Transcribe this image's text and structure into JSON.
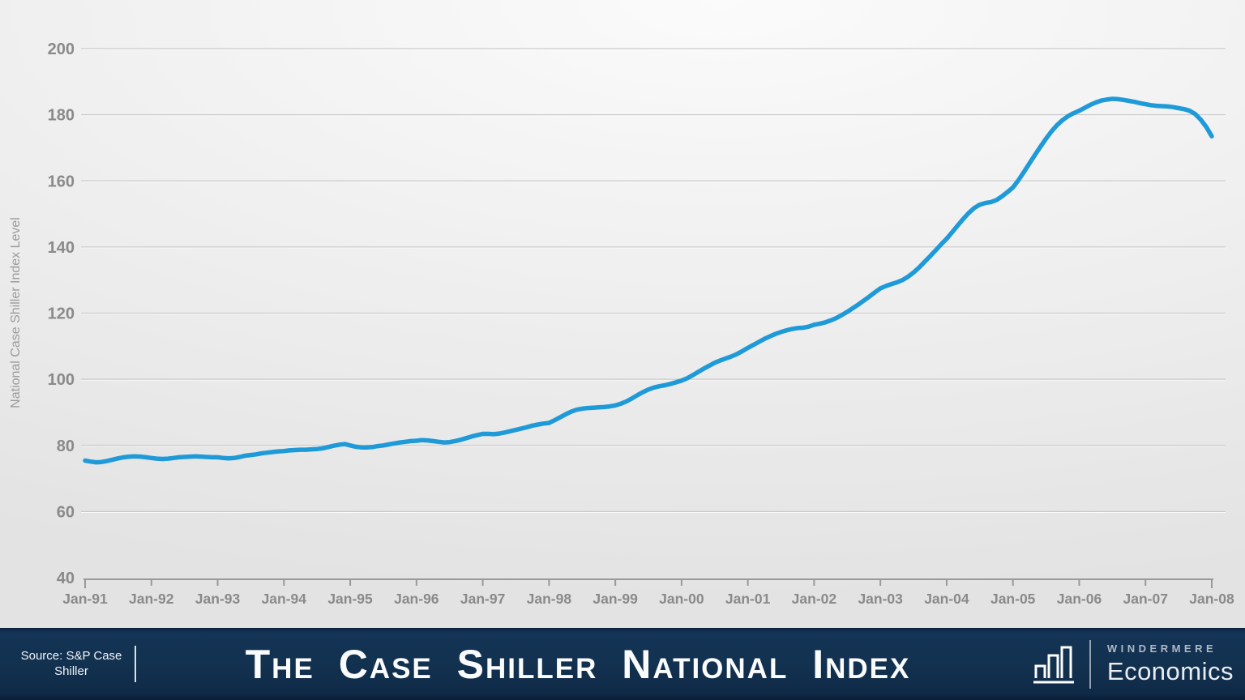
{
  "chart_data": {
    "type": "line",
    "title": "The Case Shiller National Index",
    "xlabel": "",
    "ylabel": "National Case Shiller Index Level",
    "ylim": [
      40,
      200
    ],
    "y_ticks": [
      40,
      60,
      80,
      100,
      120,
      140,
      160,
      180,
      200
    ],
    "x_tick_labels": [
      "Jan-91",
      "Jan-92",
      "Jan-93",
      "Jan-94",
      "Jan-95",
      "Jan-96",
      "Jan-97",
      "Jan-98",
      "Jan-99",
      "Jan-00",
      "Jan-01",
      "Jan-02",
      "Jan-03",
      "Jan-04",
      "Jan-05",
      "Jan-06",
      "Jan-07",
      "Jan-08"
    ],
    "frequency": "monthly",
    "grid": true,
    "legend": false,
    "line_color": "#1f9ad9",
    "series": [
      {
        "name": "National Case Shiller Index Level",
        "values": [
          75.4,
          75.1,
          74.9,
          75.0,
          75.3,
          75.7,
          76.1,
          76.4,
          76.6,
          76.7,
          76.6,
          76.4,
          76.2,
          76.0,
          75.9,
          76.0,
          76.2,
          76.4,
          76.5,
          76.6,
          76.7,
          76.6,
          76.5,
          76.4,
          76.4,
          76.2,
          76.1,
          76.2,
          76.5,
          76.9,
          77.1,
          77.3,
          77.6,
          77.8,
          78.0,
          78.2,
          78.3,
          78.5,
          78.6,
          78.7,
          78.7,
          78.8,
          78.9,
          79.1,
          79.5,
          79.9,
          80.2,
          80.4,
          80.0,
          79.6,
          79.4,
          79.4,
          79.5,
          79.8,
          80.0,
          80.3,
          80.6,
          80.9,
          81.1,
          81.3,
          81.4,
          81.6,
          81.5,
          81.3,
          81.1,
          80.9,
          81.0,
          81.3,
          81.7,
          82.2,
          82.7,
          83.1,
          83.5,
          83.5,
          83.4,
          83.6,
          83.9,
          84.3,
          84.7,
          85.1,
          85.5,
          86.0,
          86.3,
          86.6,
          86.8,
          87.6,
          88.5,
          89.4,
          90.2,
          90.8,
          91.1,
          91.3,
          91.4,
          91.5,
          91.6,
          91.8,
          92.1,
          92.6,
          93.3,
          94.2,
          95.2,
          96.1,
          96.9,
          97.5,
          97.9,
          98.2,
          98.6,
          99.1,
          99.6,
          100.3,
          101.2,
          102.2,
          103.2,
          104.1,
          105.0,
          105.7,
          106.3,
          106.9,
          107.6,
          108.5,
          109.5,
          110.4,
          111.3,
          112.2,
          113.0,
          113.7,
          114.3,
          114.8,
          115.2,
          115.5,
          115.6,
          115.9,
          116.5,
          116.8,
          117.2,
          117.8,
          118.5,
          119.4,
          120.4,
          121.5,
          122.6,
          123.8,
          125.0,
          126.3,
          127.5,
          128.2,
          128.8,
          129.3,
          130.0,
          131.0,
          132.3,
          133.8,
          135.5,
          137.2,
          139.0,
          140.8,
          142.5,
          144.5,
          146.5,
          148.5,
          150.3,
          151.8,
          152.8,
          153.3,
          153.6,
          154.2,
          155.3,
          156.6,
          158.0,
          160.2,
          162.7,
          165.3,
          167.9,
          170.4,
          172.8,
          175.0,
          176.9,
          178.4,
          179.6,
          180.5,
          181.2,
          182.1,
          183.0,
          183.7,
          184.3,
          184.6,
          184.8,
          184.7,
          184.5,
          184.2,
          183.9,
          183.5,
          183.2,
          182.9,
          182.7,
          182.6,
          182.5,
          182.3,
          182.0,
          181.7,
          181.2,
          180.2,
          178.5,
          176.3,
          173.5
        ]
      }
    ]
  },
  "footer": {
    "source_label": "Source: S&P Case Shiller",
    "title": "The Case Shiller National Index",
    "logo": {
      "brand_top": "WINDERMERE",
      "brand_bottom": "Economics",
      "icon": "bar-chart-icon"
    }
  },
  "colors": {
    "line": "#1f9ad9",
    "gridline": "#c9c9c9",
    "axis": "#999999",
    "tick_label": "#8a8a8a",
    "axis_title": "#9b9b9b",
    "footer_navy": "#12314f",
    "footer_text": "#ffffff"
  }
}
